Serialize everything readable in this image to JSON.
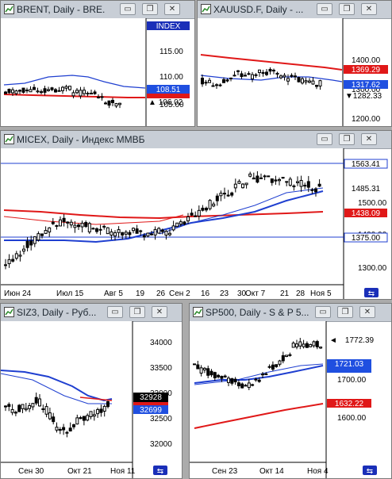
{
  "windows": {
    "brent": {
      "title": "BRENT, Daily - BRE...",
      "index_label": "INDEX",
      "y_ticks": [
        "115.00",
        "110.00",
        "105.00"
      ],
      "price_tags": [
        {
          "text": "108.51",
          "bg": "#1f4fe0",
          "fg": "#ffffff"
        },
        {
          "text": "106.02",
          "bg": "#ffffff",
          "fg": "#000000",
          "marker": "▲"
        }
      ]
    },
    "xauusd": {
      "title": "XAUUSD.F, Daily - ...",
      "y_ticks": [
        "1400.00",
        "1300.00",
        "1200.00"
      ],
      "price_tags": [
        {
          "text": "1369.29",
          "bg": "#e01818",
          "fg": "#ffffff"
        },
        {
          "text": "1317.62",
          "bg": "#1f4fe0",
          "fg": "#ffffff"
        },
        {
          "text": "1282.33",
          "bg": "#ffffff",
          "fg": "#000000",
          "marker": "▼"
        }
      ]
    },
    "micex": {
      "title": "MICEX, Daily - Индекс ММВБ",
      "y_ticks": [
        "1500.00",
        "1400.00",
        "1300.00"
      ],
      "x_labels": [
        "Июн 24",
        "Июл 15",
        "Авг 5",
        "19",
        "26",
        "Сен 2",
        "16",
        "23",
        "30",
        "Окт 7",
        "21",
        "28",
        "Ноя 5"
      ],
      "price_tags": [
        {
          "text": "1563.41",
          "bg": "#ffffff",
          "fg": "#000000",
          "border": "#1f3fd0"
        },
        {
          "text": "1485.31",
          "bg": "#ffffff",
          "fg": "#000000"
        },
        {
          "text": "1438.09",
          "bg": "#e01818",
          "fg": "#ffffff"
        },
        {
          "text": "1375.00",
          "bg": "#ffffff",
          "fg": "#000000",
          "border": "#1f3fd0"
        }
      ]
    },
    "siz3": {
      "title": "SIZ3, Daily - Руб...",
      "y_ticks": [
        "34000",
        "33500",
        "33000",
        "32500",
        "32000"
      ],
      "x_labels": [
        "Сен 30",
        "Окт 21",
        "Ноя 11"
      ],
      "price_tags": [
        {
          "text": "32928",
          "bg": "#000000",
          "fg": "#ffffff"
        },
        {
          "text": "32699",
          "bg": "#1f4fe0",
          "fg": "#ffffff"
        }
      ]
    },
    "sp500": {
      "title": "SP500, Daily - S & P 5...",
      "y_ticks": [
        "1700.00",
        "1600.00"
      ],
      "x_labels": [
        "Сен 23",
        "Окт 14",
        "Ноя 4"
      ],
      "price_tags": [
        {
          "text": "1772.39",
          "bg": "#ffffff",
          "fg": "#000000",
          "marker": "◄"
        },
        {
          "text": "1721.03",
          "bg": "#1f4fe0",
          "fg": "#ffffff"
        },
        {
          "text": "1632.22",
          "bg": "#e01818",
          "fg": "#ffffff"
        }
      ]
    }
  },
  "buttons": {
    "minimize": "▭",
    "restore": "❐",
    "close": "✕",
    "scroll_end": "⇆"
  },
  "colors": {
    "red_ma": "#e01818",
    "blue_ma": "#1f3fd0",
    "candle": "#000000",
    "frame": "#7a7a7a",
    "titlebar": "#c8ced6"
  }
}
